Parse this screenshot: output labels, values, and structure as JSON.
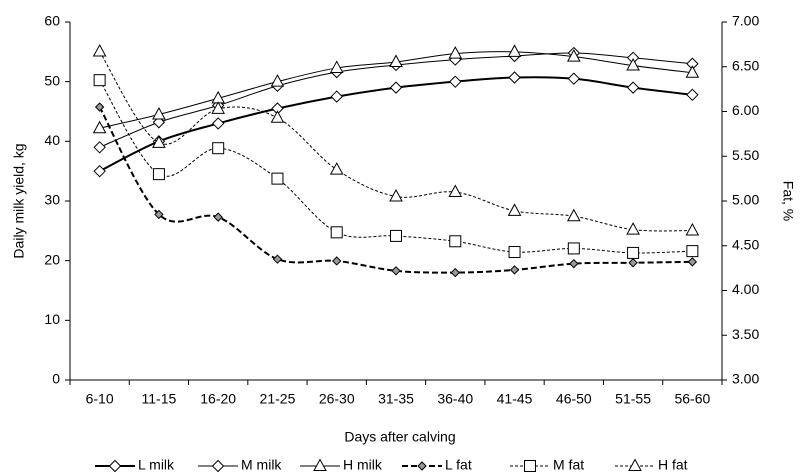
{
  "chart_data": {
    "type": "line",
    "x_label": "Days after calving",
    "y_label": "Daily milk yield, kg",
    "y2_label": "Fat, %",
    "categories": [
      "6-10",
      "11-15",
      "16-20",
      "21-25",
      "26-30",
      "31-35",
      "36-40",
      "41-45",
      "46-50",
      "51-55",
      "56-60"
    ],
    "ylim": [
      0,
      60
    ],
    "yticks": [
      0,
      10,
      20,
      30,
      40,
      50,
      60
    ],
    "y2lim": [
      3,
      7
    ],
    "y2ticks": [
      {
        "value": 3,
        "label": "3.00"
      },
      {
        "value": 3.5,
        "label": "3.50"
      },
      {
        "value": 4,
        "label": "4.00"
      },
      {
        "value": 4.5,
        "label": "4.50"
      },
      {
        "value": 5,
        "label": "5.00"
      },
      {
        "value": 5.5,
        "label": "5.50"
      },
      {
        "value": 6,
        "label": "6.00"
      },
      {
        "value": 6.5,
        "label": "6.50"
      },
      {
        "value": 7,
        "label": "7.00"
      }
    ],
    "series": [
      {
        "name": "L milk",
        "color": "#000000",
        "marker": "diamond",
        "dashed": false,
        "values": [
          35,
          40,
          43,
          45.5,
          47.5,
          49,
          50,
          50.7,
          50.5,
          49,
          47.8
        ]
      },
      {
        "name": "M milk",
        "color": "#000000",
        "marker": "diamond",
        "dashed": false,
        "values": [
          39,
          43.2,
          46,
          49.3,
          51.6,
          52.8,
          53.7,
          54.3,
          54.8,
          54,
          53
        ]
      },
      {
        "name": "H milk",
        "color": "#000000",
        "marker": "triangle",
        "dashed": false,
        "values": [
          42.2,
          44.5,
          47.2,
          50,
          52.3,
          53.3,
          54.7,
          55,
          54.2,
          52.7,
          51.5
        ]
      },
      {
        "name": "L fat",
        "color": "#000000",
        "marker": "diamond",
        "dashed": true,
        "axis": "y2",
        "values": [
          6.05,
          4.85,
          4.82,
          4.35,
          4.33,
          4.22,
          4.2,
          4.23,
          4.3,
          4.31,
          4.32
        ]
      },
      {
        "name": "M fat",
        "color": "#000000",
        "marker": "square",
        "dashed": true,
        "axis": "y2",
        "values": [
          6.35,
          5.3,
          5.59,
          5.25,
          4.65,
          4.61,
          4.55,
          4.43,
          4.47,
          4.42,
          4.44
        ]
      },
      {
        "name": "H fat",
        "color": "#000000",
        "marker": "triangle",
        "dashed": true,
        "axis": "y2",
        "values": [
          6.67,
          5.65,
          6.03,
          5.93,
          5.35,
          5.05,
          5.1,
          4.89,
          4.83,
          4.68,
          4.67
        ]
      }
    ]
  }
}
